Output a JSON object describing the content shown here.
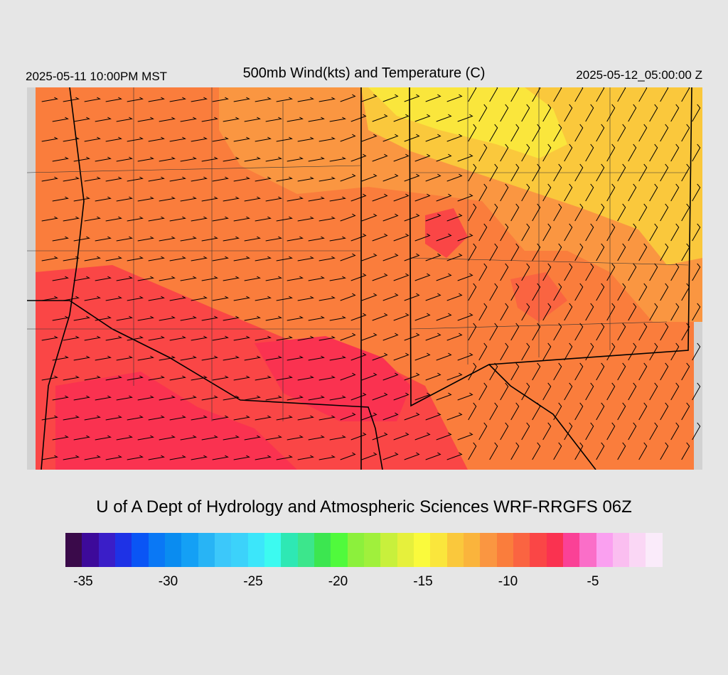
{
  "header": {
    "valid_local": "2025-05-11 10:00PM MST",
    "title": "500mb Wind(kts) and Temperature (C)",
    "valid_utc": "2025-05-12_05:00:00 Z"
  },
  "credit": "U of A Dept of Hydrology and Atmospheric Sciences WRF-RRGFS 06Z",
  "colorbar": {
    "colors": [
      "#3a0a4a",
      "#3d0a9a",
      "#3a1ec8",
      "#1e32e6",
      "#0a55f5",
      "#0a78f5",
      "#0a8cf0",
      "#14a0f5",
      "#28b4f5",
      "#3cc8fa",
      "#3cd2fa",
      "#3ce6fa",
      "#3cfaf0",
      "#2ee8b4",
      "#3ce68c",
      "#3ce650",
      "#50fa3c",
      "#8cf03c",
      "#a0f03c",
      "#c8f03c",
      "#e6f03c",
      "#fafa3c",
      "#fae63c",
      "#fac83c",
      "#fab43c",
      "#fa9641",
      "#fa7d3c",
      "#fa6441",
      "#fa4646",
      "#fa3250",
      "#fa4196",
      "#fa6ec8",
      "#faa0f0",
      "#fabef0",
      "#fad7f5",
      "#faebfa"
    ],
    "tick_labels": [
      "-35",
      "-30",
      "-25",
      "-20",
      "-15",
      "-10",
      "-5"
    ]
  },
  "map": {
    "field": "500mb temperature (C) with wind barbs (kts)",
    "colors": {
      "background": "#fa7d3c",
      "warm": "#fac83c",
      "warmest": "#fae63c",
      "cold": "#fa4646",
      "coldest": "#fa3250",
      "mid": "#fa9641",
      "nodata": "#d2d2d2"
    }
  }
}
